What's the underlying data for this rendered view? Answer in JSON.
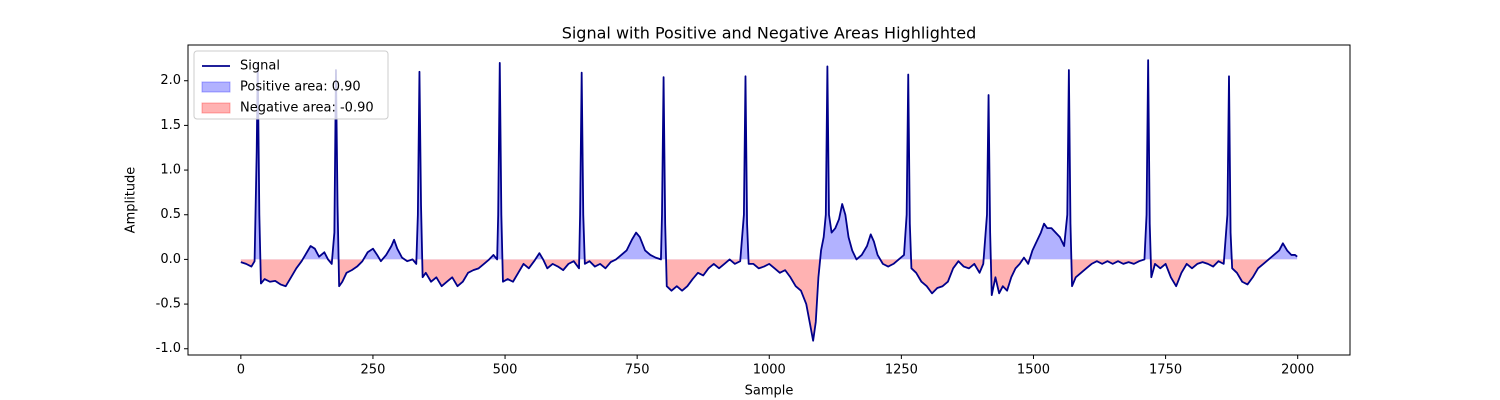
{
  "chart_data": {
    "type": "line",
    "title": "Signal with Positive and Negative Areas Highlighted",
    "x_label": "Sample",
    "y_label": "Amplitude",
    "x": [
      0,
      10,
      20,
      26,
      30,
      32,
      35,
      38,
      45,
      55,
      65,
      75,
      85,
      95,
      105,
      115,
      125,
      132,
      140,
      148,
      158,
      165,
      172,
      177,
      180,
      183,
      186,
      192,
      200,
      210,
      220,
      230,
      240,
      250,
      258,
      265,
      275,
      285,
      290,
      296,
      305,
      315,
      325,
      332,
      335,
      338,
      341,
      344,
      350,
      360,
      370,
      380,
      390,
      400,
      410,
      420,
      430,
      440,
      450,
      460,
      470,
      478,
      485,
      487,
      490,
      493,
      496,
      505,
      515,
      525,
      535,
      545,
      555,
      565,
      572,
      580,
      590,
      600,
      610,
      620,
      630,
      640,
      642,
      645,
      648,
      651,
      660,
      670,
      680,
      690,
      700,
      710,
      720,
      730,
      740,
      748,
      755,
      765,
      775,
      785,
      795,
      797,
      800,
      803,
      806,
      815,
      825,
      835,
      845,
      855,
      865,
      875,
      885,
      895,
      905,
      915,
      925,
      935,
      945,
      952,
      955,
      958,
      961,
      970,
      980,
      990,
      1000,
      1010,
      1020,
      1030,
      1040,
      1050,
      1060,
      1070,
      1078,
      1083,
      1088,
      1093,
      1098,
      1103,
      1107,
      1110,
      1113,
      1118,
      1125,
      1132,
      1138,
      1144,
      1150,
      1157,
      1165,
      1175,
      1185,
      1192,
      1198,
      1205,
      1215,
      1225,
      1235,
      1245,
      1255,
      1260,
      1263,
      1266,
      1269,
      1278,
      1288,
      1298,
      1308,
      1318,
      1328,
      1338,
      1348,
      1358,
      1368,
      1378,
      1388,
      1398,
      1405,
      1412,
      1415,
      1418,
      1421,
      1428,
      1435,
      1442,
      1450,
      1458,
      1466,
      1474,
      1482,
      1490,
      1498,
      1506,
      1514,
      1520,
      1526,
      1534,
      1542,
      1550,
      1558,
      1564,
      1567,
      1570,
      1573,
      1580,
      1590,
      1600,
      1610,
      1620,
      1630,
      1640,
      1650,
      1660,
      1670,
      1680,
      1690,
      1700,
      1710,
      1714,
      1717,
      1720,
      1723,
      1730,
      1740,
      1750,
      1760,
      1770,
      1780,
      1790,
      1800,
      1810,
      1820,
      1830,
      1840,
      1850,
      1860,
      1867,
      1870,
      1873,
      1876,
      1885,
      1895,
      1905,
      1915,
      1925,
      1935,
      1945,
      1955,
      1965,
      1972,
      1980,
      1988,
      1995,
      1999
    ],
    "series": [
      {
        "name": "Signal",
        "color": "#00008b",
        "values": [
          -0.03,
          -0.05,
          -0.08,
          -0.02,
          1.2,
          2.2,
          0.5,
          -0.27,
          -0.22,
          -0.25,
          -0.24,
          -0.28,
          -0.3,
          -0.2,
          -0.1,
          -0.02,
          0.08,
          0.15,
          0.12,
          0.03,
          0.08,
          0.0,
          -0.05,
          0.3,
          2.12,
          0.6,
          -0.3,
          -0.25,
          -0.15,
          -0.12,
          -0.08,
          -0.02,
          0.08,
          0.12,
          0.05,
          -0.02,
          0.05,
          0.15,
          0.22,
          0.12,
          0.02,
          -0.02,
          0.0,
          -0.05,
          0.5,
          2.1,
          0.6,
          -0.2,
          -0.15,
          -0.25,
          -0.2,
          -0.3,
          -0.25,
          -0.2,
          -0.3,
          -0.25,
          -0.15,
          -0.12,
          -0.1,
          -0.05,
          0.0,
          0.05,
          0.0,
          0.5,
          2.2,
          0.5,
          -0.25,
          -0.22,
          -0.25,
          -0.15,
          -0.05,
          -0.1,
          -0.02,
          0.07,
          0.0,
          -0.1,
          -0.05,
          -0.08,
          -0.12,
          -0.05,
          -0.02,
          -0.1,
          0.5,
          2.09,
          0.5,
          -0.05,
          -0.02,
          -0.08,
          -0.05,
          -0.1,
          -0.03,
          0.0,
          0.05,
          0.1,
          0.22,
          0.3,
          0.25,
          0.1,
          0.05,
          0.02,
          0.0,
          0.5,
          2.04,
          0.4,
          -0.3,
          -0.35,
          -0.3,
          -0.35,
          -0.3,
          -0.22,
          -0.15,
          -0.18,
          -0.1,
          -0.05,
          -0.1,
          -0.05,
          0.0,
          -0.05,
          -0.02,
          0.5,
          2.05,
          0.4,
          -0.05,
          -0.05,
          -0.1,
          -0.08,
          -0.05,
          -0.1,
          -0.15,
          -0.12,
          -0.2,
          -0.3,
          -0.35,
          -0.5,
          -0.75,
          -0.91,
          -0.7,
          -0.2,
          0.1,
          0.25,
          0.5,
          2.16,
          0.5,
          0.3,
          0.35,
          0.45,
          0.62,
          0.5,
          0.25,
          0.1,
          0.0,
          0.05,
          0.15,
          0.28,
          0.2,
          0.05,
          -0.05,
          -0.08,
          -0.05,
          0.0,
          0.05,
          0.5,
          2.07,
          0.4,
          -0.1,
          -0.15,
          -0.25,
          -0.3,
          -0.38,
          -0.32,
          -0.3,
          -0.25,
          -0.1,
          -0.02,
          -0.08,
          -0.1,
          -0.05,
          -0.15,
          -0.05,
          0.5,
          1.84,
          0.3,
          -0.4,
          -0.2,
          -0.38,
          -0.3,
          -0.35,
          -0.2,
          -0.1,
          -0.05,
          0.02,
          -0.05,
          0.1,
          0.2,
          0.3,
          0.4,
          0.35,
          0.35,
          0.3,
          0.25,
          0.15,
          0.5,
          2.12,
          0.4,
          -0.3,
          -0.2,
          -0.15,
          -0.1,
          -0.05,
          -0.02,
          -0.05,
          -0.02,
          -0.05,
          -0.02,
          -0.05,
          -0.03,
          -0.05,
          -0.02,
          0.0,
          0.5,
          2.23,
          0.4,
          -0.2,
          -0.05,
          -0.1,
          -0.05,
          -0.2,
          -0.3,
          -0.15,
          -0.05,
          -0.1,
          -0.05,
          -0.03,
          -0.05,
          -0.08,
          -0.02,
          -0.05,
          0.5,
          2.05,
          0.3,
          -0.1,
          -0.15,
          -0.25,
          -0.28,
          -0.2,
          -0.1,
          -0.05,
          0.0,
          0.05,
          0.1,
          0.18,
          0.1,
          0.05,
          0.05,
          0.03
        ]
      }
    ],
    "fill_between": [
      {
        "name": "Positive area: 0.90",
        "color": "#0000ff",
        "where": "above"
      },
      {
        "name": "Negative area: -0.90",
        "color": "#ff0000",
        "where": "below"
      }
    ],
    "xlim": [
      -100,
      2099
    ],
    "ylim": [
      -1.07,
      2.4
    ],
    "xticks": [
      0,
      250,
      500,
      750,
      1000,
      1250,
      1500,
      1750,
      2000
    ],
    "yticks": [
      {
        "value": -1,
        "label": "-1.0"
      },
      {
        "value": -0.5,
        "label": "-0.5"
      },
      {
        "value": 0,
        "label": "0.0"
      },
      {
        "value": 0.5,
        "label": "0.5"
      },
      {
        "value": 1,
        "label": "1.0"
      },
      {
        "value": 1.5,
        "label": "1.5"
      },
      {
        "value": 2,
        "label": "2.0"
      }
    ],
    "legend": "upper left"
  }
}
